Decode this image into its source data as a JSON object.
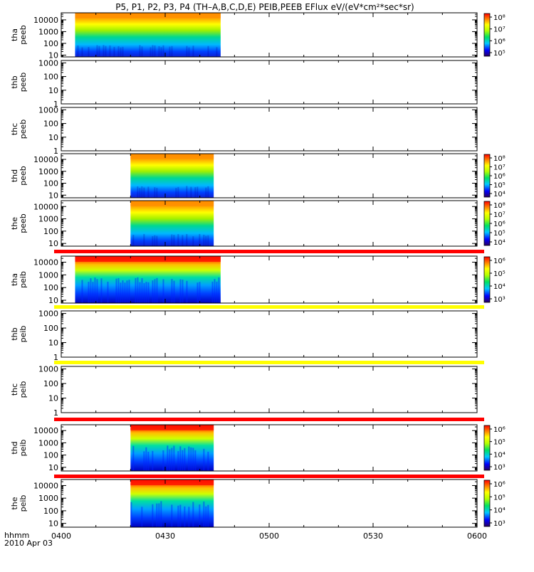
{
  "title": "P5, P1, P2, P3, P4 (TH–A,B,C,D,E) PEIB,PEEB EFlux eV/(eV*cm²*sec*sr)",
  "time_axis": {
    "label_line1": "hhmm",
    "label_line2": "2010 Apr 03",
    "ticks": [
      "0400",
      "0430",
      "0500",
      "0530",
      "0600"
    ],
    "range_minutes": [
      0,
      120
    ]
  },
  "chart_data": [
    {
      "type": "heatmap",
      "panel": "tha-peeb",
      "ylabel": [
        "tha",
        "peeb"
      ],
      "y_ticks": [
        "10",
        "100",
        "1000",
        "10000"
      ],
      "yscale": "log",
      "ylim": [
        7,
        40000
      ],
      "data_span_min": [
        4,
        46
      ],
      "colorbar_ticks": [
        "10⁵",
        "10⁶",
        "10⁷",
        "10⁸"
      ],
      "status_bar": ""
    },
    {
      "type": "heatmap",
      "panel": "thb-peeb",
      "ylabel": [
        "thb",
        "peeb"
      ],
      "y_ticks": [
        "1",
        "10",
        "100",
        "1000"
      ],
      "yscale": "log",
      "ylim": [
        1,
        1500
      ],
      "data_span_min": null,
      "colorbar_ticks": [],
      "status_bar": ""
    },
    {
      "type": "heatmap",
      "panel": "thc-peeb",
      "ylabel": [
        "thc",
        "peeb"
      ],
      "y_ticks": [
        "1",
        "10",
        "100",
        "1000"
      ],
      "yscale": "log",
      "ylim": [
        1,
        1500
      ],
      "data_span_min": null,
      "colorbar_ticks": [],
      "status_bar": ""
    },
    {
      "type": "heatmap",
      "panel": "thd-peeb",
      "ylabel": [
        "thd",
        "peeb"
      ],
      "y_ticks": [
        "10",
        "100",
        "1000",
        "10000"
      ],
      "yscale": "log",
      "ylim": [
        6,
        30000
      ],
      "data_span_min": [
        20,
        44
      ],
      "colorbar_ticks": [
        "10⁴",
        "10⁵",
        "10⁶",
        "10⁷",
        "10⁸"
      ],
      "status_bar": ""
    },
    {
      "type": "heatmap",
      "panel": "the-peeb",
      "ylabel": [
        "the",
        "peeb"
      ],
      "y_ticks": [
        "10",
        "100",
        "1000",
        "10000"
      ],
      "yscale": "log",
      "ylim": [
        6,
        30000
      ],
      "data_span_min": [
        20,
        44
      ],
      "colorbar_ticks": [
        "10⁴",
        "10⁵",
        "10⁶",
        "10⁷",
        "10⁸"
      ],
      "status_bar": "#ff0000"
    },
    {
      "type": "heatmap",
      "panel": "tha-peib",
      "ylabel": [
        "tha",
        "peib"
      ],
      "y_ticks": [
        "10",
        "100",
        "1000",
        "10000"
      ],
      "yscale": "log",
      "ylim": [
        6,
        30000
      ],
      "data_span_min": [
        4,
        46
      ],
      "colorbar_ticks": [
        "10³",
        "10⁴",
        "10⁵",
        "10⁶"
      ],
      "status_bar": "#ffff00"
    },
    {
      "type": "heatmap",
      "panel": "thb-peib",
      "ylabel": [
        "thb",
        "peib"
      ],
      "y_ticks": [
        "1",
        "10",
        "100",
        "1000"
      ],
      "yscale": "log",
      "ylim": [
        1,
        1500
      ],
      "data_span_min": null,
      "colorbar_ticks": [],
      "status_bar": "#ffff00"
    },
    {
      "type": "heatmap",
      "panel": "thc-peib",
      "ylabel": [
        "thc",
        "peib"
      ],
      "y_ticks": [
        "1",
        "10",
        "100",
        "1000"
      ],
      "yscale": "log",
      "ylim": [
        1,
        1500
      ],
      "data_span_min": null,
      "colorbar_ticks": [],
      "status_bar": "#ff0000"
    },
    {
      "type": "heatmap",
      "panel": "thd-peib",
      "ylabel": [
        "thd",
        "peib"
      ],
      "y_ticks": [
        "10",
        "100",
        "1000",
        "10000"
      ],
      "yscale": "log",
      "ylim": [
        5,
        30000
      ],
      "data_span_min": [
        20,
        44
      ],
      "colorbar_ticks": [
        "10³",
        "10⁴",
        "10⁵",
        "10⁶"
      ],
      "status_bar": "#ff0000"
    },
    {
      "type": "heatmap",
      "panel": "the-peib",
      "ylabel": [
        "the",
        "peib"
      ],
      "y_ticks": [
        "10",
        "100",
        "1000",
        "10000"
      ],
      "yscale": "log",
      "ylim": [
        5,
        30000
      ],
      "data_span_min": [
        20,
        44
      ],
      "colorbar_ticks": [
        "10³",
        "10⁴",
        "10⁵",
        "10⁶"
      ],
      "status_bar": ""
    }
  ]
}
